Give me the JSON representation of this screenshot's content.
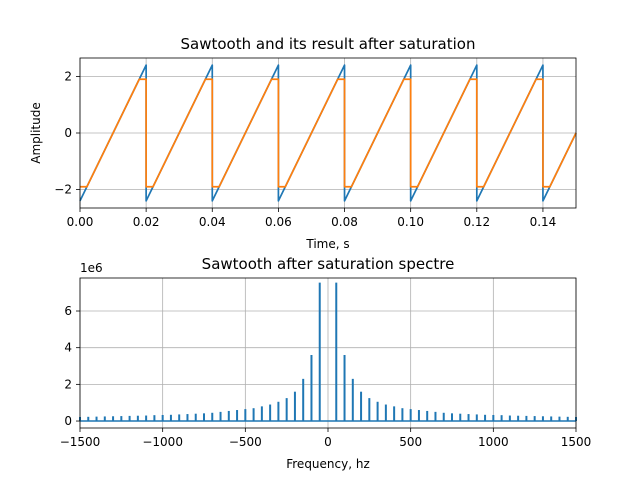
{
  "chart_data": [
    {
      "type": "line",
      "title": "Sawtooth and its result after saturation",
      "xlabel": "Time, s",
      "ylabel": "Amplitude",
      "xlim": [
        0,
        0.15
      ],
      "ylim": [
        -2.65,
        2.65
      ],
      "grid": true,
      "xticks": [
        0.0,
        0.02,
        0.04,
        0.06,
        0.08,
        0.1,
        0.12,
        0.14
      ],
      "xtick_labels": [
        "0.00",
        "0.02",
        "0.04",
        "0.06",
        "0.08",
        "0.10",
        "0.12",
        "0.14"
      ],
      "yticks": [
        -2,
        0,
        2
      ],
      "ytick_labels": [
        "−2",
        "0",
        "2"
      ],
      "series": [
        {
          "color": "#1f77b4",
          "waveform": "sawtooth",
          "period": 0.02,
          "min": -2.4,
          "max": 2.4
        },
        {
          "color": "#ff7f0e",
          "waveform": "saturated sawtooth",
          "period": 0.02,
          "min": -2.4,
          "max": 2.4,
          "clip": 1.9
        }
      ]
    },
    {
      "type": "bar",
      "title": "Sawtooth after saturation spectre",
      "xlabel": "Frequency, hz",
      "ylabel": "",
      "offset_text": "1e6",
      "xlim": [
        -1500,
        1500
      ],
      "ylim": [
        -0.38,
        7.8
      ],
      "grid": true,
      "xticks": [
        -1500,
        -1000,
        -500,
        0,
        500,
        1000,
        1500
      ],
      "xtick_labels": [
        "−1500",
        "−1000",
        "−500",
        "0",
        "500",
        "1000",
        "1500"
      ],
      "yticks": [
        0,
        2,
        4,
        6
      ],
      "ytick_labels": [
        "0",
        "2",
        "4",
        "6"
      ],
      "color": "#1f77b4",
      "harmonic_spacing": 50,
      "x": [
        50,
        100,
        150,
        200,
        250,
        300,
        350,
        400,
        450,
        500,
        550,
        600,
        650,
        700,
        750,
        800,
        850,
        900,
        950,
        1000,
        1050,
        1100,
        1150,
        1200,
        1250,
        1300,
        1350,
        1400,
        1450,
        1500
      ],
      "values": [
        7.55,
        3.6,
        2.3,
        1.6,
        1.25,
        1.05,
        0.9,
        0.8,
        0.7,
        0.65,
        0.6,
        0.55,
        0.5,
        0.45,
        0.42,
        0.4,
        0.38,
        0.36,
        0.34,
        0.33,
        0.32,
        0.3,
        0.29,
        0.28,
        0.27,
        0.26,
        0.25,
        0.24,
        0.23,
        0.22
      ],
      "symmetric": true
    }
  ]
}
